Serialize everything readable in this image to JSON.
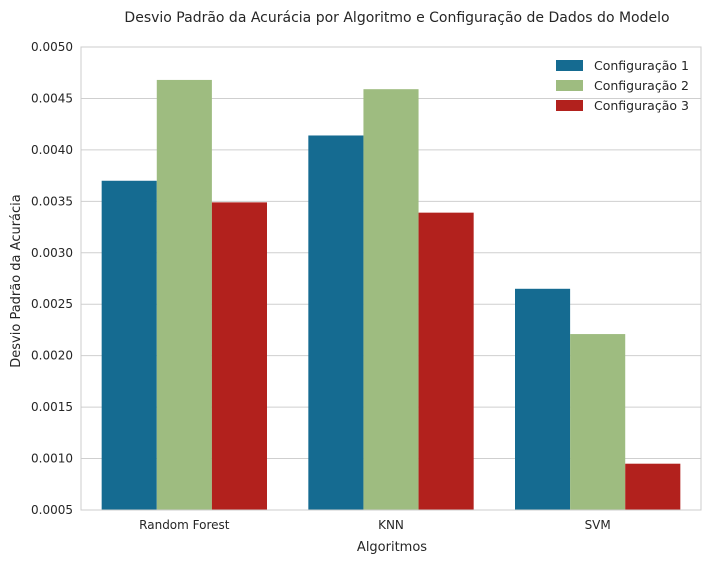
{
  "chart_data": {
    "type": "bar",
    "title": "Desvio Padrão da Acurácia por Algoritmo e Configuração de Dados do Modelo",
    "xlabel": "Algoritmos",
    "ylabel": "Desvio Padrão da Acurácia",
    "categories": [
      "Random Forest",
      "KNN",
      "SVM"
    ],
    "series": [
      {
        "name": "Configuração 1",
        "color": "#156b91",
        "values": [
          0.0037,
          0.00414,
          0.00265
        ]
      },
      {
        "name": "Configuração 2",
        "color": "#9ebc80",
        "values": [
          0.00468,
          0.00459,
          0.00221
        ]
      },
      {
        "name": "Configuração 3",
        "color": "#b2211d",
        "values": [
          0.00349,
          0.00339,
          0.00095
        ]
      }
    ],
    "ylim": [
      0.0005,
      0.005
    ],
    "yticks": [
      "0.0005",
      "0.0010",
      "0.0015",
      "0.0020",
      "0.0025",
      "0.0030",
      "0.0035",
      "0.0040",
      "0.0045",
      "0.0050"
    ],
    "grid": true,
    "legend_position": "top-right"
  }
}
